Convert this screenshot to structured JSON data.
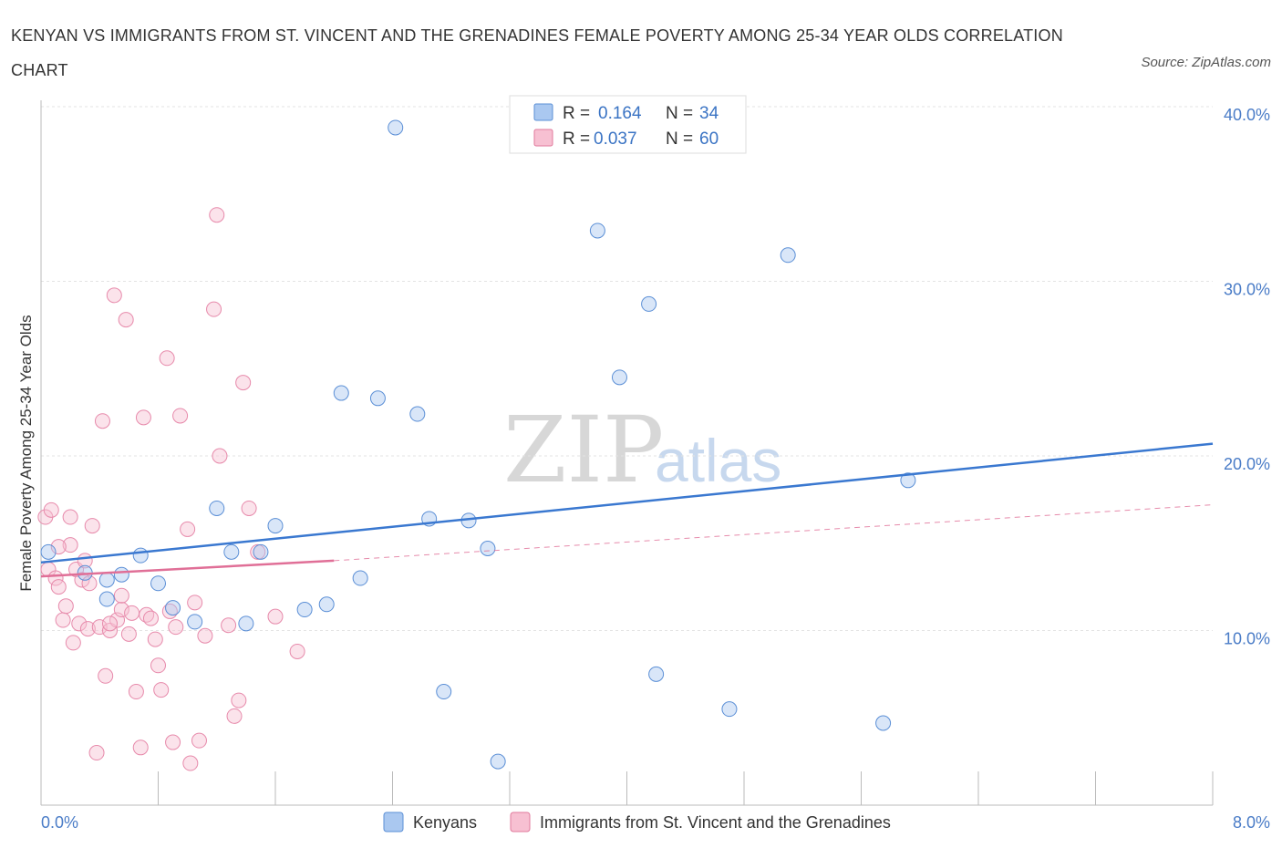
{
  "title": "KENYAN VS IMMIGRANTS FROM ST. VINCENT AND THE GRENADINES FEMALE POVERTY AMONG 25-34 YEAR OLDS CORRELATION CHART",
  "source": "Source: ZipAtlas.com",
  "watermark": {
    "zip": "ZIP",
    "atlas": "atlas"
  },
  "legend": {
    "r_label": "R =",
    "n_label": "N =",
    "rows": [
      {
        "r": "0.164",
        "n": "34",
        "color": "#aac8f0",
        "border": "#5b8fd6"
      },
      {
        "r": "0.037",
        "n": "60",
        "color": "#f7c0d2",
        "border": "#e07a9c"
      }
    ]
  },
  "bottom_legend": [
    {
      "label": "Kenyans",
      "color": "#aac8f0",
      "border": "#5b8fd6"
    },
    {
      "label": "Immigrants from St. Vincent and the Grenadines",
      "color": "#f7c0d2",
      "border": "#e07a9c"
    }
  ],
  "chart_data": {
    "type": "scatter",
    "title": "KENYAN VS IMMIGRANTS FROM ST. VINCENT AND THE GRENADINES FEMALE POVERTY AMONG 25-34 YEAR OLDS CORRELATION CHART",
    "xlabel": "",
    "ylabel": "Female Poverty Among 25-34 Year Olds",
    "xlim": [
      0,
      8
    ],
    "ylim": [
      0,
      40
    ],
    "x_tick_labels": [
      "0.0%",
      "8.0%"
    ],
    "y_ticks": [
      10,
      20,
      30,
      40
    ],
    "y_tick_labels": [
      "10.0%",
      "20.0%",
      "30.0%",
      "40.0%"
    ],
    "colors": {
      "kenyans": "#3a78d0",
      "svg": "#e06f97"
    },
    "series": [
      {
        "name": "Kenyans",
        "points": [
          [
            0.05,
            14.5
          ],
          [
            0.3,
            13.3
          ],
          [
            0.45,
            12.9
          ],
          [
            0.45,
            11.8
          ],
          [
            0.55,
            13.2
          ],
          [
            0.68,
            14.3
          ],
          [
            0.8,
            12.7
          ],
          [
            0.9,
            11.3
          ],
          [
            1.05,
            10.5
          ],
          [
            1.2,
            17.0
          ],
          [
            1.3,
            14.5
          ],
          [
            1.4,
            10.4
          ],
          [
            1.5,
            14.5
          ],
          [
            1.6,
            16.0
          ],
          [
            1.8,
            11.2
          ],
          [
            1.95,
            11.5
          ],
          [
            2.05,
            23.6
          ],
          [
            2.18,
            13.0
          ],
          [
            2.3,
            23.3
          ],
          [
            2.42,
            38.8
          ],
          [
            2.57,
            22.4
          ],
          [
            2.65,
            16.4
          ],
          [
            2.75,
            6.5
          ],
          [
            2.92,
            16.3
          ],
          [
            3.05,
            14.7
          ],
          [
            3.12,
            2.5
          ],
          [
            3.8,
            32.9
          ],
          [
            3.95,
            24.5
          ],
          [
            4.15,
            28.7
          ],
          [
            4.2,
            7.5
          ],
          [
            4.7,
            5.5
          ],
          [
            5.1,
            31.5
          ],
          [
            5.75,
            4.7
          ],
          [
            5.92,
            18.6
          ]
        ],
        "trend": {
          "x": [
            0,
            8
          ],
          "y": [
            13.9,
            20.7
          ]
        }
      },
      {
        "name": "Immigrants from St. Vincent and the Grenadines",
        "points": [
          [
            0.03,
            16.5
          ],
          [
            0.05,
            13.5
          ],
          [
            0.07,
            16.9
          ],
          [
            0.1,
            13.0
          ],
          [
            0.12,
            12.5
          ],
          [
            0.15,
            10.6
          ],
          [
            0.17,
            11.4
          ],
          [
            0.2,
            14.9
          ],
          [
            0.2,
            16.5
          ],
          [
            0.22,
            9.3
          ],
          [
            0.24,
            13.5
          ],
          [
            0.26,
            10.4
          ],
          [
            0.28,
            12.9
          ],
          [
            0.3,
            14.0
          ],
          [
            0.32,
            10.1
          ],
          [
            0.35,
            16.0
          ],
          [
            0.38,
            3.0
          ],
          [
            0.4,
            10.2
          ],
          [
            0.42,
            22.0
          ],
          [
            0.44,
            7.4
          ],
          [
            0.47,
            10.0
          ],
          [
            0.5,
            29.2
          ],
          [
            0.52,
            10.6
          ],
          [
            0.55,
            11.2
          ],
          [
            0.58,
            27.8
          ],
          [
            0.6,
            9.8
          ],
          [
            0.62,
            11.0
          ],
          [
            0.65,
            6.5
          ],
          [
            0.68,
            3.3
          ],
          [
            0.7,
            22.2
          ],
          [
            0.72,
            10.9
          ],
          [
            0.75,
            10.7
          ],
          [
            0.78,
            9.5
          ],
          [
            0.8,
            8.0
          ],
          [
            0.82,
            6.6
          ],
          [
            0.86,
            25.6
          ],
          [
            0.88,
            11.1
          ],
          [
            0.9,
            3.6
          ],
          [
            0.92,
            10.2
          ],
          [
            0.95,
            22.3
          ],
          [
            1.0,
            15.8
          ],
          [
            1.02,
            2.4
          ],
          [
            1.05,
            11.6
          ],
          [
            1.08,
            3.7
          ],
          [
            1.12,
            9.7
          ],
          [
            1.18,
            28.4
          ],
          [
            1.2,
            33.8
          ],
          [
            1.22,
            20.0
          ],
          [
            1.28,
            10.3
          ],
          [
            1.32,
            5.1
          ],
          [
            1.35,
            6.0
          ],
          [
            1.38,
            24.2
          ],
          [
            1.42,
            17.0
          ],
          [
            1.48,
            14.5
          ],
          [
            1.6,
            10.8
          ],
          [
            1.75,
            8.8
          ],
          [
            0.12,
            14.8
          ],
          [
            0.33,
            12.7
          ],
          [
            0.55,
            12.0
          ],
          [
            0.47,
            10.4
          ]
        ],
        "trend_solid": {
          "x": [
            0,
            2.0
          ],
          "y": [
            13.1,
            14.0
          ]
        },
        "trend_dashed": {
          "x": [
            2.0,
            8
          ],
          "y": [
            14.0,
            17.2
          ]
        }
      }
    ]
  }
}
